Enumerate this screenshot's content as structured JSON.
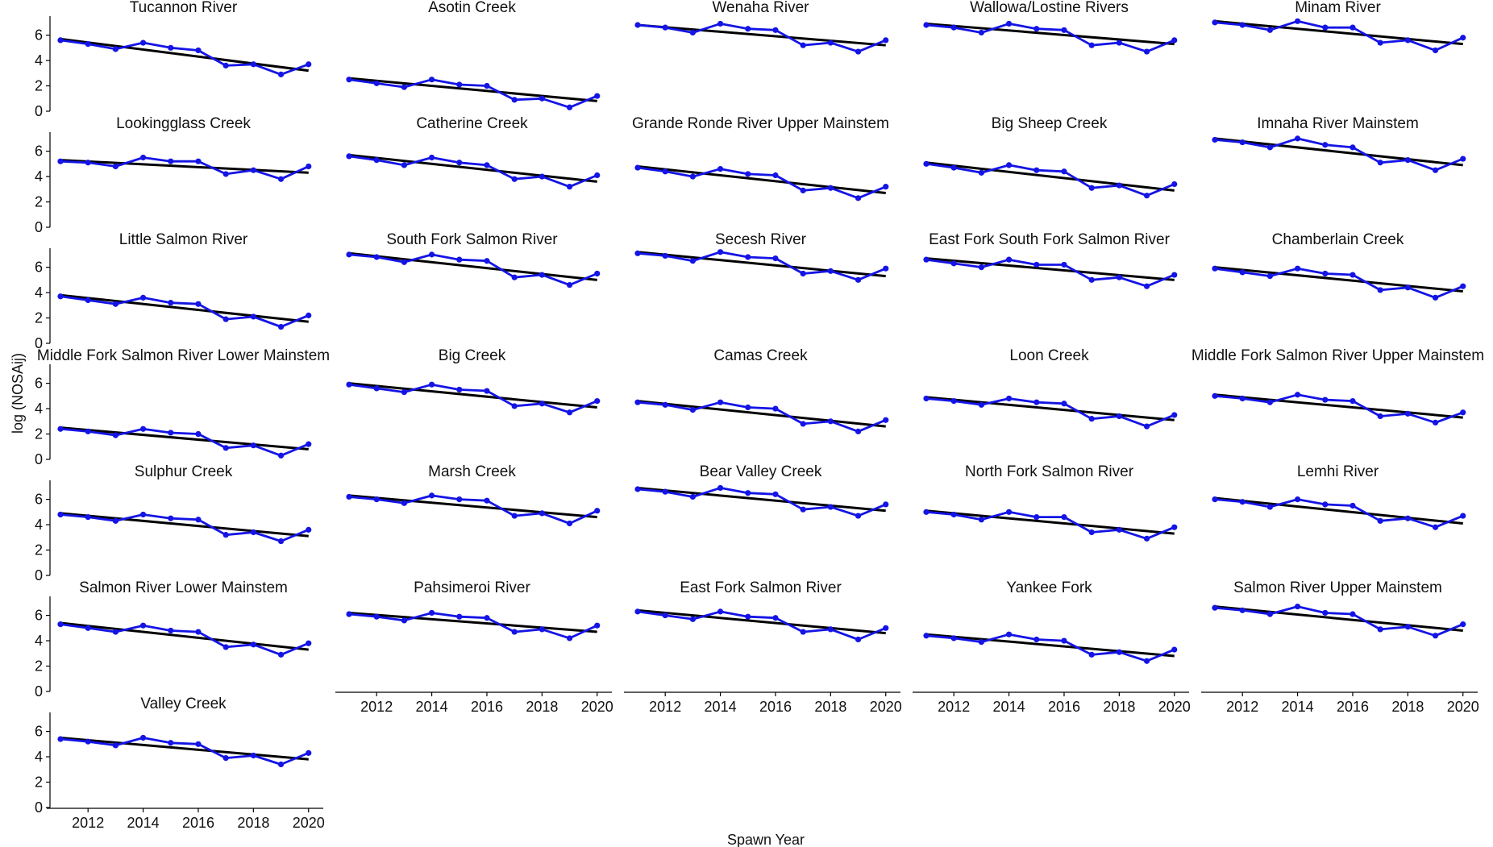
{
  "chart_data": {
    "type": "line",
    "layout": "facet-grid",
    "xlabel": "Spawn Year",
    "ylabel": "log (NOSAij)",
    "x": [
      2011,
      2012,
      2013,
      2014,
      2015,
      2016,
      2017,
      2018,
      2019,
      2020
    ],
    "xlim": [
      2011,
      2020.3
    ],
    "ylim": [
      0,
      7.5
    ],
    "xticks": [
      2012,
      2014,
      2016,
      2018,
      2020
    ],
    "yticks": [
      0,
      2,
      4,
      6
    ],
    "colors": {
      "observed": "#1414e6",
      "trend": "#000000",
      "axis": "#000000"
    },
    "panels": [
      {
        "title": "Tucannon River",
        "values": [
          5.6,
          5.3,
          4.9,
          5.4,
          5.0,
          4.8,
          3.6,
          3.7,
          2.9,
          3.7
        ],
        "trend": [
          5.7,
          3.2
        ]
      },
      {
        "title": "Asotin Creek",
        "values": [
          2.5,
          2.2,
          1.9,
          2.5,
          2.1,
          2.0,
          0.9,
          1.0,
          0.3,
          1.2
        ],
        "trend": [
          2.6,
          0.8
        ]
      },
      {
        "title": "Wenaha River",
        "values": [
          6.8,
          6.6,
          6.2,
          6.9,
          6.5,
          6.4,
          5.2,
          5.4,
          4.7,
          5.6
        ],
        "trend": [
          6.8,
          5.2
        ]
      },
      {
        "title": "Wallowa/Lostine Rivers",
        "values": [
          6.8,
          6.6,
          6.2,
          6.9,
          6.5,
          6.4,
          5.2,
          5.4,
          4.7,
          5.6
        ],
        "trend": [
          6.9,
          5.3
        ]
      },
      {
        "title": "Minam River",
        "values": [
          7.0,
          6.8,
          6.4,
          7.1,
          6.6,
          6.6,
          5.4,
          5.6,
          4.8,
          5.8
        ],
        "trend": [
          7.1,
          5.3
        ]
      },
      {
        "title": "Lookingglass Creek",
        "values": [
          5.2,
          5.1,
          4.8,
          5.5,
          5.2,
          5.2,
          4.2,
          4.5,
          3.8,
          4.8
        ],
        "trend": [
          5.3,
          4.3
        ]
      },
      {
        "title": "Catherine Creek",
        "values": [
          5.6,
          5.3,
          4.9,
          5.5,
          5.1,
          4.9,
          3.8,
          4.0,
          3.2,
          4.1
        ],
        "trend": [
          5.7,
          3.6
        ]
      },
      {
        "title": "Grande Ronde River Upper Mainstem",
        "values": [
          4.7,
          4.4,
          4.0,
          4.6,
          4.2,
          4.1,
          2.9,
          3.1,
          2.3,
          3.2
        ],
        "trend": [
          4.8,
          2.7
        ]
      },
      {
        "title": "Big Sheep Creek",
        "values": [
          5.0,
          4.7,
          4.3,
          4.9,
          4.5,
          4.4,
          3.1,
          3.3,
          2.5,
          3.4
        ],
        "trend": [
          5.1,
          2.9
        ]
      },
      {
        "title": "Imnaha River Mainstem",
        "values": [
          6.9,
          6.7,
          6.3,
          7.0,
          6.5,
          6.3,
          5.1,
          5.3,
          4.5,
          5.4
        ],
        "trend": [
          7.0,
          4.9
        ]
      },
      {
        "title": "Little Salmon River",
        "values": [
          3.7,
          3.4,
          3.1,
          3.6,
          3.2,
          3.1,
          1.9,
          2.1,
          1.3,
          2.2
        ],
        "trend": [
          3.8,
          1.7
        ]
      },
      {
        "title": "South Fork Salmon River",
        "values": [
          7.0,
          6.8,
          6.4,
          7.0,
          6.6,
          6.5,
          5.2,
          5.4,
          4.6,
          5.5
        ],
        "trend": [
          7.1,
          5.0
        ]
      },
      {
        "title": "Secesh River",
        "values": [
          7.1,
          6.9,
          6.5,
          7.2,
          6.8,
          6.7,
          5.5,
          5.7,
          5.0,
          5.9
        ],
        "trend": [
          7.2,
          5.3
        ]
      },
      {
        "title": "East Fork South Fork Salmon River",
        "values": [
          6.6,
          6.3,
          6.0,
          6.6,
          6.2,
          6.2,
          5.0,
          5.2,
          4.5,
          5.4
        ],
        "trend": [
          6.7,
          5.0
        ]
      },
      {
        "title": "Chamberlain Creek",
        "values": [
          5.9,
          5.6,
          5.3,
          5.9,
          5.5,
          5.4,
          4.2,
          4.4,
          3.6,
          4.5
        ],
        "trend": [
          6.0,
          4.1
        ]
      },
      {
        "title": "Middle Fork Salmon River Lower Mainstem",
        "values": [
          2.4,
          2.2,
          1.9,
          2.4,
          2.1,
          2.0,
          0.9,
          1.1,
          0.3,
          1.2
        ],
        "trend": [
          2.5,
          0.8
        ]
      },
      {
        "title": "Big Creek",
        "values": [
          5.9,
          5.6,
          5.3,
          5.9,
          5.5,
          5.4,
          4.2,
          4.4,
          3.7,
          4.6
        ],
        "trend": [
          6.0,
          4.1
        ]
      },
      {
        "title": "Camas Creek",
        "values": [
          4.5,
          4.3,
          3.9,
          4.5,
          4.1,
          4.0,
          2.8,
          3.0,
          2.2,
          3.1
        ],
        "trend": [
          4.6,
          2.6
        ]
      },
      {
        "title": "Loon Creek",
        "values": [
          4.8,
          4.6,
          4.3,
          4.8,
          4.5,
          4.4,
          3.2,
          3.4,
          2.6,
          3.5
        ],
        "trend": [
          4.9,
          3.1
        ]
      },
      {
        "title": "Middle Fork Salmon River Upper Mainstem",
        "values": [
          5.0,
          4.8,
          4.5,
          5.1,
          4.7,
          4.6,
          3.4,
          3.6,
          2.9,
          3.7
        ],
        "trend": [
          5.1,
          3.3
        ]
      },
      {
        "title": "Sulphur Creek",
        "values": [
          4.8,
          4.6,
          4.3,
          4.8,
          4.5,
          4.4,
          3.2,
          3.4,
          2.7,
          3.6
        ],
        "trend": [
          4.9,
          3.1
        ]
      },
      {
        "title": "Marsh Creek",
        "values": [
          6.2,
          6.0,
          5.7,
          6.3,
          6.0,
          5.9,
          4.7,
          4.9,
          4.1,
          5.1
        ],
        "trend": [
          6.3,
          4.6
        ]
      },
      {
        "title": "Bear Valley Creek",
        "values": [
          6.8,
          6.6,
          6.2,
          6.9,
          6.5,
          6.4,
          5.2,
          5.4,
          4.7,
          5.6
        ],
        "trend": [
          6.9,
          5.1
        ]
      },
      {
        "title": "North Fork Salmon River",
        "values": [
          5.0,
          4.8,
          4.4,
          5.0,
          4.6,
          4.6,
          3.4,
          3.6,
          2.9,
          3.8
        ],
        "trend": [
          5.1,
          3.3
        ]
      },
      {
        "title": "Lemhi River",
        "values": [
          6.0,
          5.8,
          5.4,
          6.0,
          5.6,
          5.5,
          4.3,
          4.5,
          3.8,
          4.7
        ],
        "trend": [
          6.1,
          4.1
        ]
      },
      {
        "title": "Salmon River Lower Mainstem",
        "values": [
          5.3,
          5.0,
          4.7,
          5.2,
          4.8,
          4.7,
          3.5,
          3.7,
          2.9,
          3.8
        ],
        "trend": [
          5.4,
          3.3
        ]
      },
      {
        "title": "Pahsimeroi River",
        "values": [
          6.1,
          5.9,
          5.6,
          6.2,
          5.9,
          5.8,
          4.7,
          4.9,
          4.2,
          5.2
        ],
        "trend": [
          6.2,
          4.7
        ]
      },
      {
        "title": "East Fork Salmon River",
        "values": [
          6.3,
          6.0,
          5.7,
          6.3,
          5.9,
          5.8,
          4.7,
          4.9,
          4.1,
          5.0
        ],
        "trend": [
          6.4,
          4.6
        ]
      },
      {
        "title": "Yankee Fork",
        "values": [
          4.4,
          4.2,
          3.9,
          4.5,
          4.1,
          4.0,
          2.9,
          3.1,
          2.4,
          3.3
        ],
        "trend": [
          4.5,
          2.8
        ]
      },
      {
        "title": "Salmon River Upper Mainstem",
        "values": [
          6.6,
          6.4,
          6.1,
          6.7,
          6.2,
          6.1,
          4.9,
          5.1,
          4.4,
          5.3
        ],
        "trend": [
          6.7,
          4.8
        ]
      },
      {
        "title": "Valley Creek",
        "values": [
          5.4,
          5.2,
          4.9,
          5.5,
          5.1,
          5.0,
          3.9,
          4.1,
          3.4,
          4.3
        ],
        "trend": [
          5.5,
          3.8
        ]
      }
    ]
  }
}
